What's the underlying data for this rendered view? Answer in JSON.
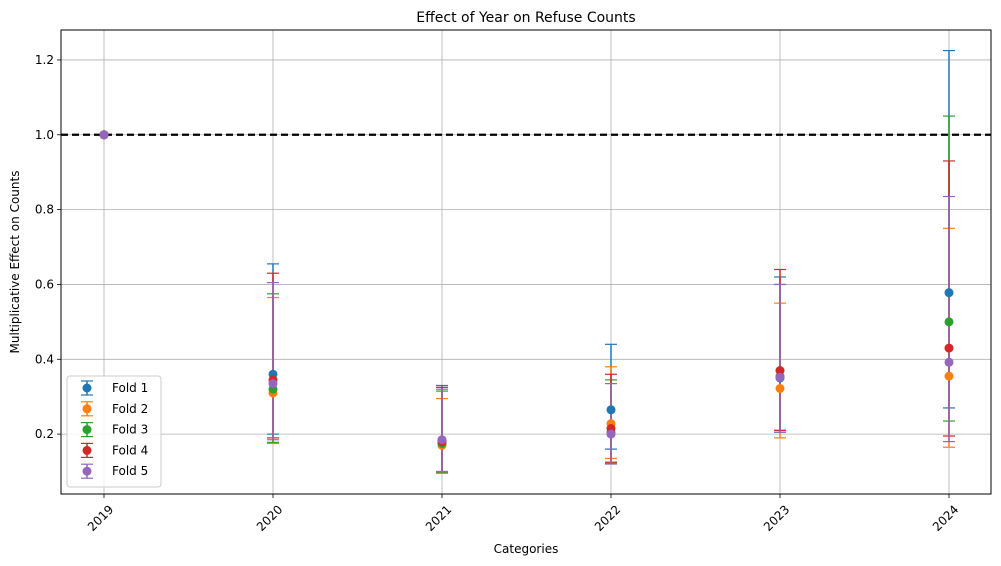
{
  "chart_data": {
    "type": "scatter",
    "title": "Effect of Year on Refuse Counts",
    "xlabel": "Categories",
    "ylabel": "Multiplicative Effect on Counts",
    "categories": [
      "2019",
      "2020",
      "2021",
      "2022",
      "2023",
      "2024"
    ],
    "ylim": [
      0.04,
      1.28
    ],
    "yticks": [
      0.2,
      0.4,
      0.6,
      0.8,
      1.0,
      1.2
    ],
    "ytick_labels": [
      "0.2",
      "0.4",
      "0.6",
      "0.8",
      "1.0",
      "1.2"
    ],
    "grid": true,
    "legend_position": "lower-left",
    "reference_line": {
      "y": 1.0,
      "style": "dashed",
      "color": "#000000"
    },
    "series": [
      {
        "name": "Fold 1",
        "color": "#1f77b4",
        "values": [
          1.0,
          0.36,
          0.18,
          0.265,
          0.35,
          0.578
        ],
        "lower": [
          1.0,
          0.2,
          0.1,
          0.16,
          0.21,
          0.27
        ],
        "upper": [
          1.0,
          0.655,
          0.33,
          0.44,
          0.62,
          1.225
        ]
      },
      {
        "name": "Fold 2",
        "color": "#ff7f0e",
        "values": [
          1.0,
          0.31,
          0.17,
          0.228,
          0.322,
          0.355
        ],
        "lower": [
          1.0,
          0.175,
          0.095,
          0.135,
          0.19,
          0.165
        ],
        "upper": [
          1.0,
          0.565,
          0.295,
          0.38,
          0.55,
          0.75
        ]
      },
      {
        "name": "Fold 3",
        "color": "#2ca02c",
        "values": [
          1.0,
          0.32,
          0.175,
          0.205,
          0.355,
          0.5
        ],
        "lower": [
          1.0,
          0.178,
          0.098,
          0.122,
          0.205,
          0.235
        ],
        "upper": [
          1.0,
          0.575,
          0.315,
          0.345,
          0.6,
          1.05
        ]
      },
      {
        "name": "Fold 4",
        "color": "#d62728",
        "values": [
          1.0,
          0.345,
          0.18,
          0.215,
          0.37,
          0.43
        ],
        "lower": [
          1.0,
          0.19,
          0.1,
          0.125,
          0.21,
          0.195
        ],
        "upper": [
          1.0,
          0.63,
          0.325,
          0.36,
          0.64,
          0.93
        ]
      },
      {
        "name": "Fold 5",
        "color": "#9467bd",
        "values": [
          1.0,
          0.335,
          0.185,
          0.2,
          0.352,
          0.392
        ],
        "lower": [
          1.0,
          0.185,
          0.1,
          0.12,
          0.205,
          0.18
        ],
        "upper": [
          1.0,
          0.605,
          0.32,
          0.335,
          0.6,
          0.835
        ]
      }
    ]
  }
}
